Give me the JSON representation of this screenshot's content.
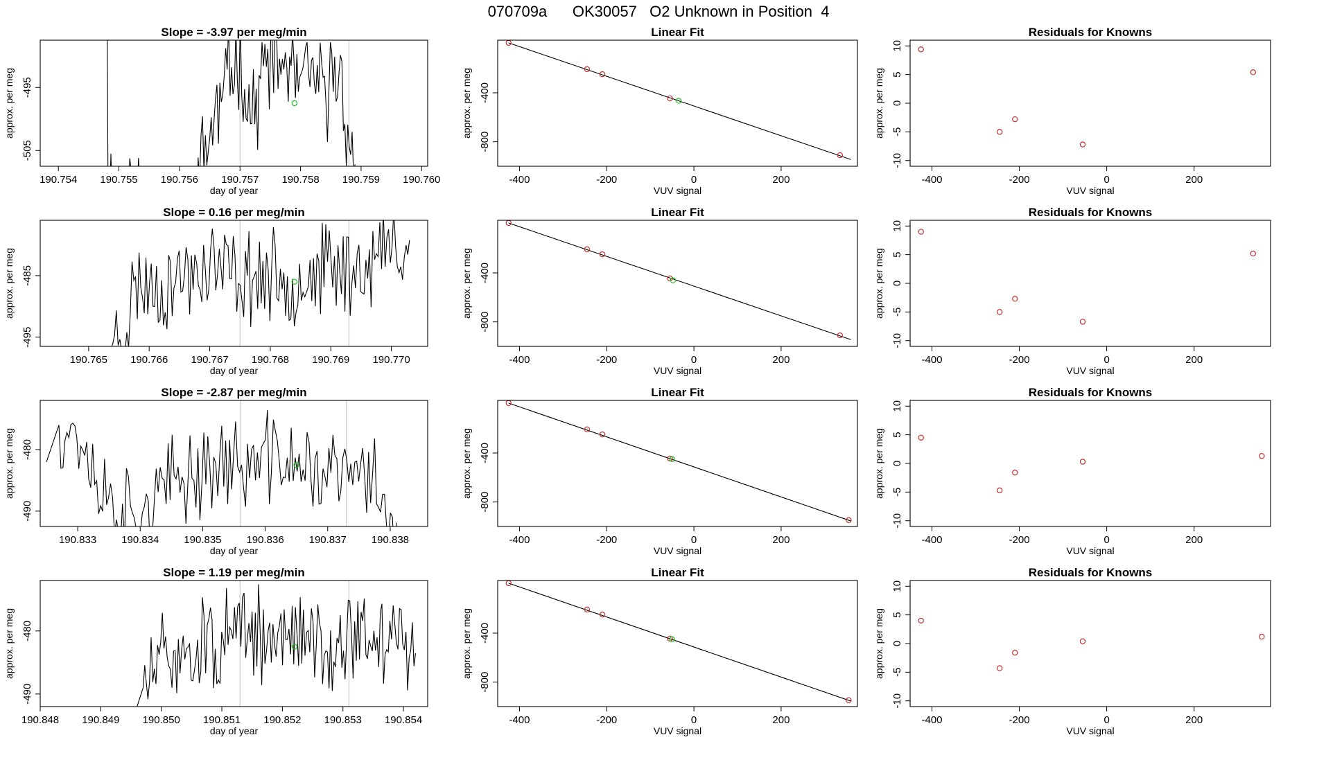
{
  "page_title": "070709a      OK30057   O2 Unknown in Position  4",
  "colors": {
    "known": "#c03030",
    "unknown": "#20c020",
    "line": "#000000",
    "vline": "#c8c8c8"
  },
  "chart_data": [
    {
      "type": "line",
      "panel": "timeseries",
      "row": 1,
      "title": "Slope =  -3.97  per meg/min",
      "xlabel": "day of year",
      "ylabel": "approx. per meg",
      "xlim": [
        190.7537,
        190.7601
      ],
      "ylim": [
        -507.5,
        -487.5
      ],
      "xticks": [
        190.754,
        190.755,
        190.756,
        190.757,
        190.758,
        190.759,
        190.76
      ],
      "xtick_labels": [
        "190.754",
        "190.755",
        "190.756",
        "190.757",
        "190.758",
        "190.759",
        "190.760"
      ],
      "yticks": [
        -495,
        -505
      ],
      "ytick_labels": [
        "-495",
        "-505"
      ],
      "vlines": [
        190.757,
        190.7588
      ],
      "unknown_point": {
        "x": 190.7579,
        "y": -497.5
      },
      "x_start": 190.7548,
      "x_end": 190.7589,
      "seed": 11,
      "anchors": [
        [
          190.7548,
          -472
        ],
        [
          190.75482,
          -510
        ],
        [
          190.7562,
          -515
        ],
        [
          190.7564,
          -505
        ],
        [
          190.7566,
          -500
        ],
        [
          190.7568,
          -493
        ],
        [
          190.757,
          -490
        ],
        [
          190.7572,
          -500
        ],
        [
          190.7574,
          -492
        ],
        [
          190.7576,
          -491
        ],
        [
          190.7578,
          -492
        ],
        [
          190.758,
          -495
        ],
        [
          190.7582,
          -493
        ],
        [
          190.7584,
          -497
        ],
        [
          190.7586,
          -491
        ],
        [
          190.7588,
          -502
        ],
        [
          190.7589,
          -512
        ]
      ]
    },
    {
      "type": "line",
      "panel": "timeseries",
      "row": 2,
      "title": "Slope =  0.16  per meg/min",
      "xlabel": "day of year",
      "ylabel": "approx. per meg",
      "xlim": [
        190.7642,
        190.7706
      ],
      "ylim": [
        -496.5,
        -476.0
      ],
      "xticks": [
        190.765,
        190.766,
        190.767,
        190.768,
        190.769,
        190.77
      ],
      "xtick_labels": [
        "190.765",
        "190.766",
        "190.767",
        "190.768",
        "190.769",
        "190.770"
      ],
      "yticks": [
        -485,
        -495
      ],
      "ytick_labels": [
        "-485",
        "-495"
      ],
      "vlines": [
        190.7675,
        190.7693
      ],
      "unknown_point": {
        "x": 190.7684,
        "y": -486.0
      },
      "x_start": 190.7652,
      "x_end": 190.7703,
      "seed": 23,
      "anchors": [
        [
          190.7652,
          -502
        ],
        [
          190.7654,
          -496
        ],
        [
          190.7656,
          -493
        ],
        [
          190.7658,
          -486
        ],
        [
          190.7662,
          -487
        ],
        [
          190.7666,
          -485
        ],
        [
          190.767,
          -483
        ],
        [
          190.7674,
          -485
        ],
        [
          190.7678,
          -485
        ],
        [
          190.7682,
          -486
        ],
        [
          190.7686,
          -485
        ],
        [
          190.769,
          -484
        ],
        [
          190.7694,
          -484
        ],
        [
          190.7698,
          -482
        ],
        [
          190.77,
          -480
        ],
        [
          190.7703,
          -480
        ]
      ]
    },
    {
      "type": "line",
      "panel": "timeseries",
      "row": 3,
      "title": "Slope =  -2.87  per meg/min",
      "xlabel": "day of year",
      "ylabel": "approx. per meg",
      "xlim": [
        190.8324,
        190.8386
      ],
      "ylim": [
        -492.5,
        -472.0
      ],
      "xticks": [
        190.833,
        190.834,
        190.835,
        190.836,
        190.837,
        190.838
      ],
      "xtick_labels": [
        "190.833",
        "190.834",
        "190.835",
        "190.836",
        "190.837",
        "190.838"
      ],
      "yticks": [
        -480,
        -490
      ],
      "ytick_labels": [
        "-480",
        "-490"
      ],
      "vlines": [
        190.8356,
        190.8373
      ],
      "unknown_point": {
        "x": 190.8365,
        "y": -482.5
      },
      "x_start": 190.8325,
      "x_end": 190.8381,
      "seed": 37,
      "anchors": [
        [
          190.8325,
          -482
        ],
        [
          190.8327,
          -476
        ],
        [
          190.833,
          -477
        ],
        [
          190.8334,
          -487
        ],
        [
          190.8338,
          -490
        ],
        [
          190.8342,
          -489
        ],
        [
          190.8346,
          -485
        ],
        [
          190.835,
          -483
        ],
        [
          190.8354,
          -482
        ],
        [
          190.8358,
          -483
        ],
        [
          190.8362,
          -481
        ],
        [
          190.8366,
          -483
        ],
        [
          190.837,
          -484
        ],
        [
          190.8374,
          -484
        ],
        [
          190.8378,
          -485
        ],
        [
          190.8381,
          -495
        ]
      ]
    },
    {
      "type": "line",
      "panel": "timeseries",
      "row": 4,
      "title": "Slope =  1.19  per meg/min",
      "xlabel": "day of year",
      "ylabel": "approx. per meg",
      "xlim": [
        190.848,
        190.8544
      ],
      "ylim": [
        -492.0,
        -472.0
      ],
      "xticks": [
        190.848,
        190.849,
        190.85,
        190.851,
        190.852,
        190.853,
        190.854
      ],
      "xtick_labels": [
        "190.848",
        "190.849",
        "190.850",
        "190.851",
        "190.852",
        "190.853",
        "190.854"
      ],
      "yticks": [
        -480,
        -490
      ],
      "ytick_labels": [
        "-480",
        "-490"
      ],
      "vlines": [
        190.8513,
        190.8531
      ],
      "unknown_point": {
        "x": 190.8522,
        "y": -482.5
      },
      "x_start": 190.8495,
      "x_end": 190.8542,
      "seed": 51,
      "anchors": [
        [
          190.8495,
          -495
        ],
        [
          190.8497,
          -489
        ],
        [
          190.85,
          -485
        ],
        [
          190.8504,
          -483
        ],
        [
          190.8508,
          -482
        ],
        [
          190.8512,
          -481
        ],
        [
          190.8516,
          -481
        ],
        [
          190.852,
          -482
        ],
        [
          190.8524,
          -480
        ],
        [
          190.8528,
          -482
        ],
        [
          190.8532,
          -481
        ],
        [
          190.8536,
          -481
        ],
        [
          190.854,
          -481
        ],
        [
          190.8542,
          -483
        ]
      ]
    },
    {
      "type": "scatter",
      "panel": "fit",
      "row": 1,
      "title": "Linear Fit",
      "xlabel": "VUV signal",
      "ylabel": "approx. per meg",
      "xlim": [
        -450,
        375
      ],
      "ylim": [
        -1000,
        30
      ],
      "xticks": [
        -400,
        -200,
        0,
        200
      ],
      "xtick_labels": [
        "-400",
        "-200",
        "0",
        "200"
      ],
      "yticks": [
        -400,
        -800
      ],
      "ytick_labels": [
        "-400",
        "-800"
      ],
      "fit_line": {
        "x1": -425,
        "y1": 8,
        "x2": 360,
        "y2": -945
      },
      "knowns": [
        {
          "x": -425,
          "y": 8
        },
        {
          "x": -245,
          "y": -207
        },
        {
          "x": -210,
          "y": -248
        },
        {
          "x": -55,
          "y": -445
        },
        {
          "x": 335,
          "y": -910
        }
      ],
      "unknowns": [
        {
          "x": -35,
          "y": -465
        }
      ]
    },
    {
      "type": "scatter",
      "panel": "fit",
      "row": 2,
      "title": "Linear Fit",
      "xlabel": "VUV signal",
      "ylabel": "approx. per meg",
      "xlim": [
        -450,
        375
      ],
      "ylim": [
        -1000,
        30
      ],
      "xticks": [
        -400,
        -200,
        0,
        200
      ],
      "xtick_labels": [
        "-400",
        "-200",
        "0",
        "200"
      ],
      "yticks": [
        -400,
        -800
      ],
      "ytick_labels": [
        "-400",
        "-800"
      ],
      "fit_line": {
        "x1": -425,
        "y1": 8,
        "x2": 360,
        "y2": -945
      },
      "knowns": [
        {
          "x": -425,
          "y": 8
        },
        {
          "x": -245,
          "y": -207
        },
        {
          "x": -210,
          "y": -248
        },
        {
          "x": -55,
          "y": -445
        },
        {
          "x": 335,
          "y": -910
        }
      ],
      "unknowns": [
        {
          "x": -48,
          "y": -460
        }
      ]
    },
    {
      "type": "scatter",
      "panel": "fit",
      "row": 3,
      "title": "Linear Fit",
      "xlabel": "VUV signal",
      "ylabel": "approx. per meg",
      "xlim": [
        -450,
        375
      ],
      "ylim": [
        -1000,
        30
      ],
      "xticks": [
        -400,
        -200,
        0,
        200
      ],
      "xtick_labels": [
        "-400",
        "-200",
        "0",
        "200"
      ],
      "yticks": [
        -400,
        -800
      ],
      "ytick_labels": [
        "-400",
        "-800"
      ],
      "fit_line": {
        "x1": -425,
        "y1": 8,
        "x2": 360,
        "y2": -955
      },
      "knowns": [
        {
          "x": -425,
          "y": 8
        },
        {
          "x": -245,
          "y": -207
        },
        {
          "x": -210,
          "y": -248
        },
        {
          "x": -55,
          "y": -445
        },
        {
          "x": 355,
          "y": -948
        }
      ],
      "unknowns": [
        {
          "x": -50,
          "y": -450
        }
      ]
    },
    {
      "type": "scatter",
      "panel": "fit",
      "row": 4,
      "title": "Linear Fit",
      "xlabel": "VUV signal",
      "ylabel": "approx. per meg",
      "xlim": [
        -450,
        375
      ],
      "ylim": [
        -1000,
        30
      ],
      "xticks": [
        -400,
        -200,
        0,
        200
      ],
      "xtick_labels": [
        "-400",
        "-200",
        "0",
        "200"
      ],
      "yticks": [
        -400,
        -800
      ],
      "ytick_labels": [
        "-400",
        "-800"
      ],
      "fit_line": {
        "x1": -425,
        "y1": 8,
        "x2": 360,
        "y2": -955
      },
      "knowns": [
        {
          "x": -425,
          "y": 8
        },
        {
          "x": -245,
          "y": -207
        },
        {
          "x": -210,
          "y": -248
        },
        {
          "x": -55,
          "y": -445
        },
        {
          "x": 355,
          "y": -948
        }
      ],
      "unknowns": [
        {
          "x": -50,
          "y": -450
        }
      ]
    },
    {
      "type": "scatter",
      "panel": "residuals",
      "row": 1,
      "title": "Residuals for Knowns",
      "xlabel": "VUV signal",
      "ylabel": "approx. per meg",
      "xlim": [
        -450,
        375
      ],
      "ylim": [
        -11,
        11
      ],
      "xticks": [
        -400,
        -200,
        0,
        200
      ],
      "xtick_labels": [
        "-400",
        "-200",
        "0",
        "200"
      ],
      "yticks": [
        10,
        5,
        0,
        -5,
        -10
      ],
      "ytick_labels": [
        "10",
        "5",
        "0",
        "-5",
        "-10"
      ],
      "points": [
        {
          "x": -425,
          "y": 9.4
        },
        {
          "x": -245,
          "y": -5.0
        },
        {
          "x": -210,
          "y": -2.8
        },
        {
          "x": -55,
          "y": -7.2
        },
        {
          "x": 335,
          "y": 5.4
        }
      ]
    },
    {
      "type": "scatter",
      "panel": "residuals",
      "row": 2,
      "title": "Residuals for Knowns",
      "xlabel": "VUV signal",
      "ylabel": "approx. per meg",
      "xlim": [
        -450,
        375
      ],
      "ylim": [
        -11,
        11
      ],
      "xticks": [
        -400,
        -200,
        0,
        200
      ],
      "xtick_labels": [
        "-400",
        "-200",
        "0",
        "200"
      ],
      "yticks": [
        10,
        5,
        0,
        -5,
        -10
      ],
      "ytick_labels": [
        "10",
        "5",
        "0",
        "-5",
        "-10"
      ],
      "points": [
        {
          "x": -425,
          "y": 9.0
        },
        {
          "x": -245,
          "y": -5.0
        },
        {
          "x": -210,
          "y": -2.7
        },
        {
          "x": -55,
          "y": -6.7
        },
        {
          "x": 335,
          "y": 5.2
        }
      ]
    },
    {
      "type": "scatter",
      "panel": "residuals",
      "row": 3,
      "title": "Residuals for Knowns",
      "xlabel": "VUV signal",
      "ylabel": "approx. per meg",
      "xlim": [
        -450,
        375
      ],
      "ylim": [
        -11,
        11
      ],
      "xticks": [
        -400,
        -200,
        0,
        200
      ],
      "xtick_labels": [
        "-400",
        "-200",
        "0",
        "200"
      ],
      "yticks": [
        10,
        5,
        0,
        -5,
        -10
      ],
      "ytick_labels": [
        "10",
        "5",
        "0",
        "-5",
        "-10"
      ],
      "points": [
        {
          "x": -425,
          "y": 4.5
        },
        {
          "x": -245,
          "y": -4.7
        },
        {
          "x": -210,
          "y": -1.6
        },
        {
          "x": -55,
          "y": 0.3
        },
        {
          "x": 355,
          "y": 1.3
        }
      ]
    },
    {
      "type": "scatter",
      "panel": "residuals",
      "row": 4,
      "title": "Residuals for Knowns",
      "xlabel": "VUV signal",
      "ylabel": "approx. per meg",
      "xlim": [
        -450,
        375
      ],
      "ylim": [
        -11,
        11
      ],
      "xticks": [
        -400,
        -200,
        0,
        200
      ],
      "xtick_labels": [
        "-400",
        "-200",
        "0",
        "200"
      ],
      "yticks": [
        10,
        5,
        0,
        -5,
        -10
      ],
      "ytick_labels": [
        "10",
        "5",
        "0",
        "-5",
        "-10"
      ],
      "points": [
        {
          "x": -425,
          "y": 4.0
        },
        {
          "x": -245,
          "y": -4.3
        },
        {
          "x": -210,
          "y": -1.6
        },
        {
          "x": -55,
          "y": 0.4
        },
        {
          "x": 355,
          "y": 1.2
        }
      ]
    }
  ]
}
